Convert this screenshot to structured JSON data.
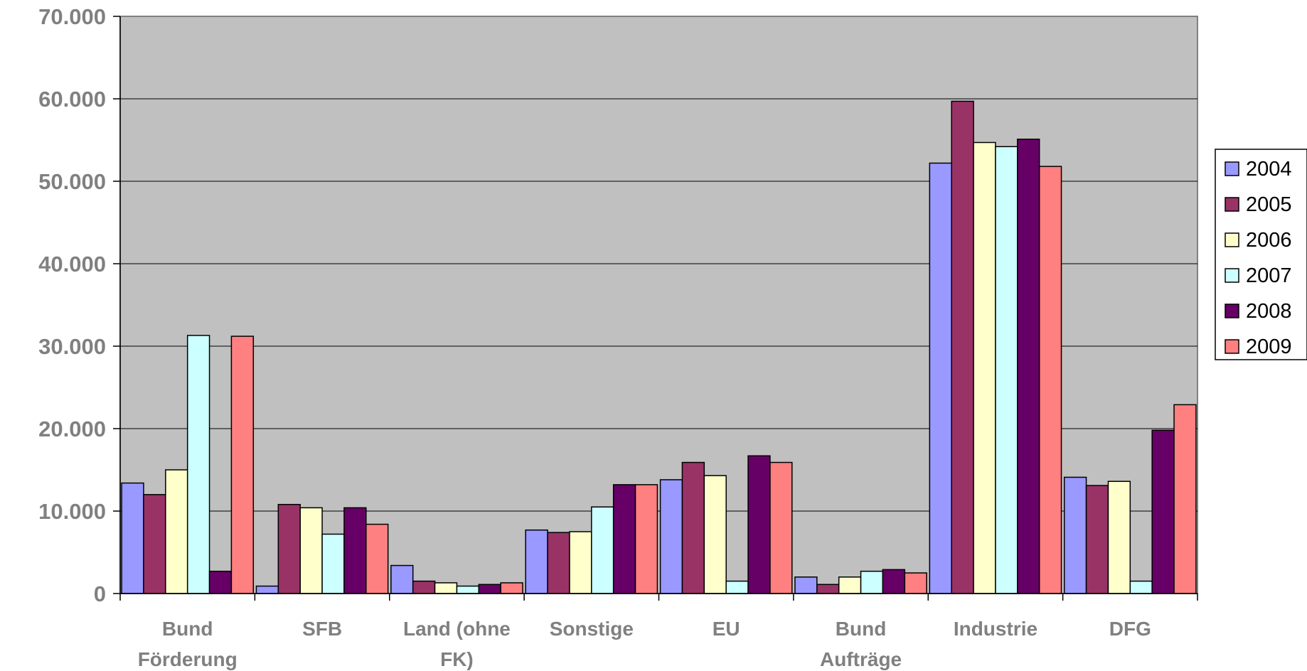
{
  "chart_data": {
    "type": "bar",
    "title": "",
    "xlabel": "",
    "ylabel": "",
    "ylim": [
      0,
      70000
    ],
    "yticks": [
      0,
      10000,
      20000,
      30000,
      40000,
      50000,
      60000,
      70000
    ],
    "ytick_labels": [
      "0",
      "10.000",
      "20.000",
      "30.000",
      "40.000",
      "50.000",
      "60.000",
      "70.000"
    ],
    "grid": true,
    "legend_position": "right",
    "plot_background": "#c0c0c0",
    "categories": [
      [
        "Bund",
        "Förderung"
      ],
      [
        "SFB"
      ],
      [
        "Land (ohne",
        "FK)"
      ],
      [
        "Sonstige"
      ],
      [
        "EU"
      ],
      [
        "Bund",
        "Aufträge"
      ],
      [
        "Industrie"
      ],
      [
        "DFG"
      ]
    ],
    "series": [
      {
        "name": "2004",
        "color": "#9999ff",
        "values": [
          13400,
          900,
          3400,
          7700,
          13800,
          2000,
          52200,
          14100
        ]
      },
      {
        "name": "2005",
        "color": "#993366",
        "values": [
          12000,
          10800,
          1500,
          7400,
          15900,
          1100,
          59700,
          13100
        ]
      },
      {
        "name": "2006",
        "color": "#ffffcc",
        "values": [
          15000,
          10400,
          1300,
          7500,
          14300,
          2000,
          54700,
          13600
        ]
      },
      {
        "name": "2007",
        "color": "#ccffff",
        "values": [
          31300,
          7200,
          900,
          10500,
          1500,
          2700,
          54200,
          1500
        ]
      },
      {
        "name": "2008",
        "color": "#660066",
        "values": [
          2700,
          10400,
          1100,
          13200,
          16700,
          2900,
          55100,
          19800
        ]
      },
      {
        "name": "2009",
        "color": "#ff8080",
        "values": [
          31200,
          8400,
          1300,
          13200,
          15900,
          2500,
          51800,
          22900
        ]
      }
    ]
  }
}
